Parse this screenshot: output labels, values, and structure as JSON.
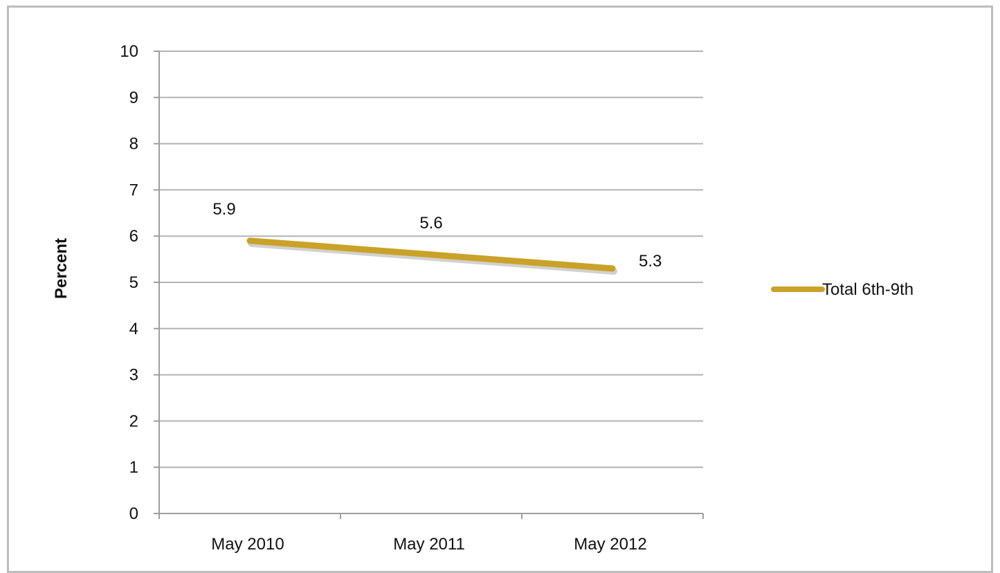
{
  "chart_data": {
    "type": "line",
    "categories": [
      "May 2010",
      "May 2011",
      "May 2012"
    ],
    "series": [
      {
        "name": "Total 6th-9th",
        "values": [
          5.9,
          5.6,
          5.3
        ],
        "color": "#c9a227"
      }
    ],
    "data_labels": [
      "5.9",
      "5.6",
      "5.3"
    ],
    "ylabel": "Percent",
    "ylim": [
      0,
      10
    ],
    "y_ticks": [
      "0",
      "1",
      "2",
      "3",
      "4",
      "5",
      "6",
      "7",
      "8",
      "9",
      "10"
    ],
    "grid": true,
    "legend_position": "right"
  }
}
